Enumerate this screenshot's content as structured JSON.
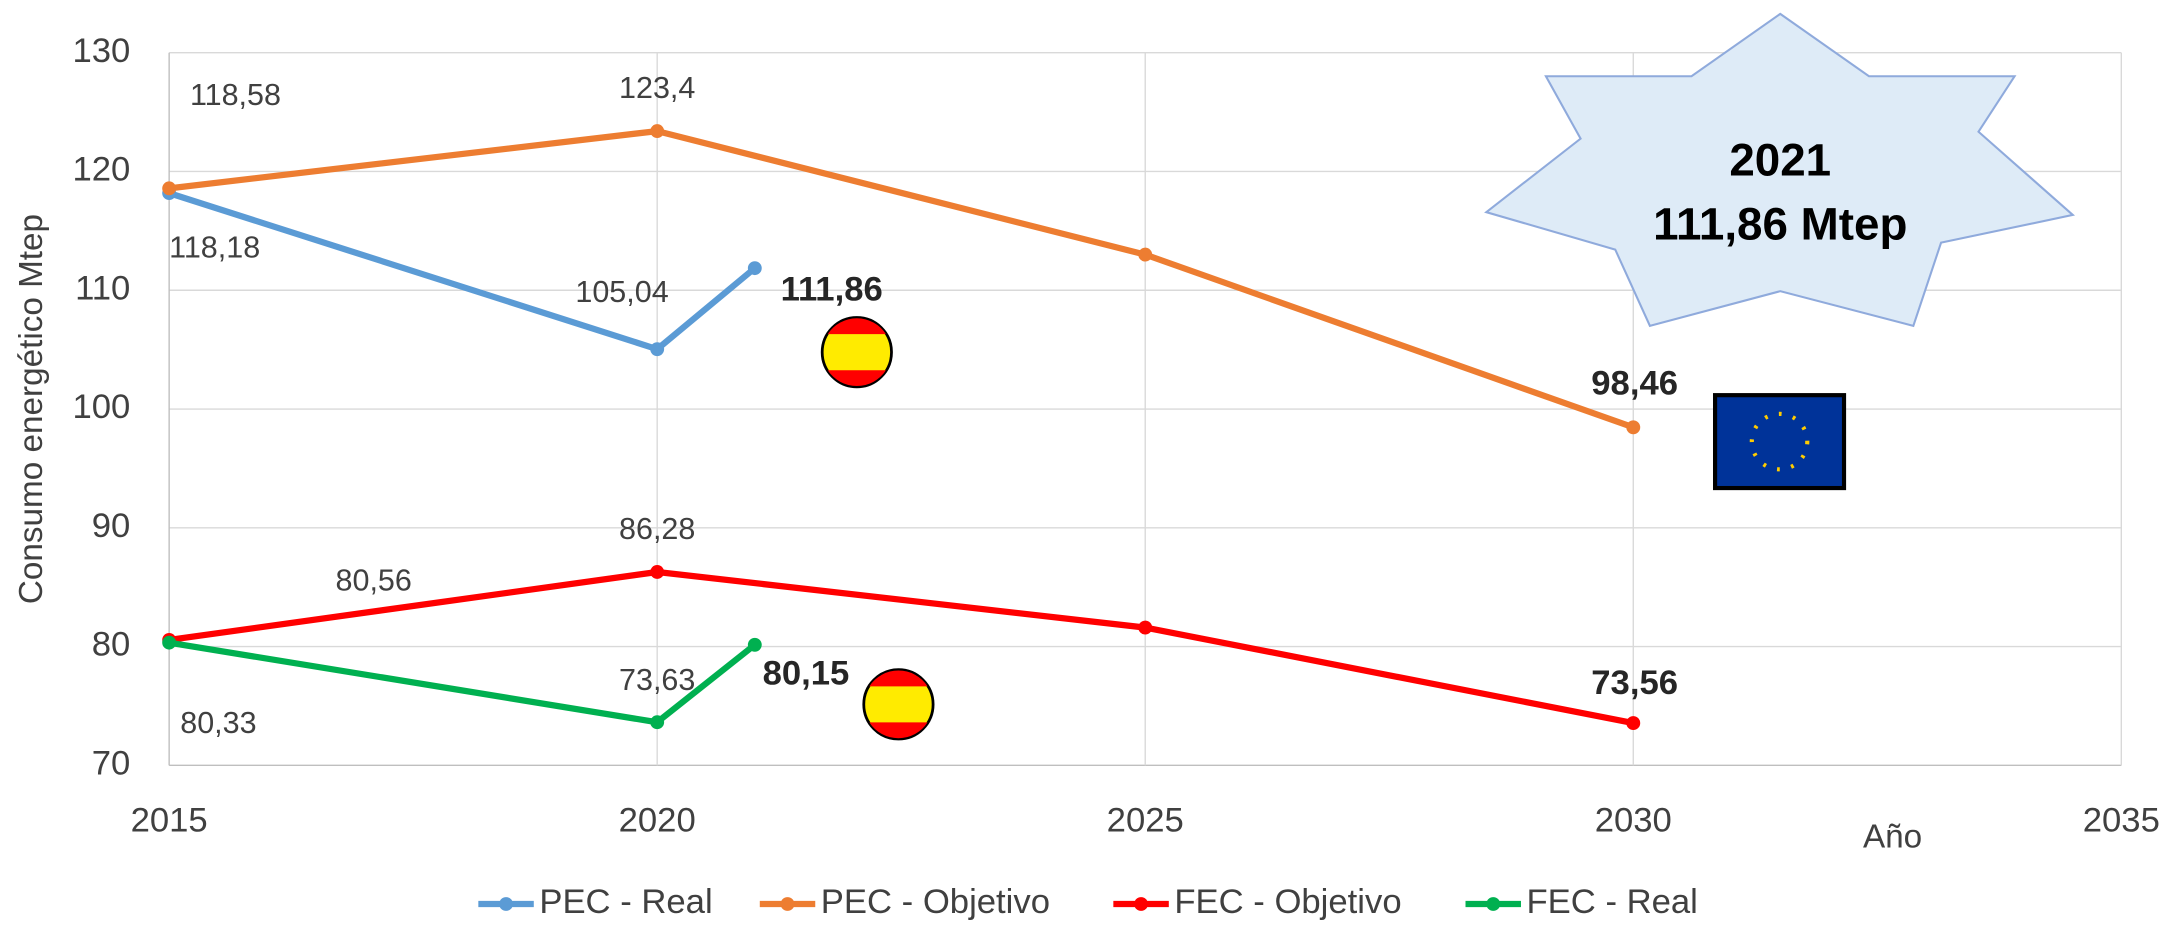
{
  "chart_data": {
    "type": "line",
    "y_label": "Consumo energético Mtep",
    "x_label": "Año",
    "annotation": [
      "2021",
      "111,86 Mtep"
    ],
    "xlim": [
      2015,
      2035
    ],
    "xticks": [
      2015,
      2020,
      2025,
      2030,
      2035
    ],
    "ylim": [
      70,
      130
    ],
    "yticks": [
      70,
      80,
      90,
      100,
      110,
      120,
      130
    ],
    "grid": true,
    "legend": "bottom",
    "series": [
      {
        "name": "PEC - Real",
        "color": "#5b9bd5",
        "x": [
          2015,
          2020,
          2021
        ],
        "values": [
          118.18,
          105.04,
          111.86
        ],
        "value_labels": [
          "118,18",
          "105,04",
          "111,86"
        ]
      },
      {
        "name": "PEC - Objetivo",
        "color": "#ed7d31",
        "x": [
          2015,
          2020,
          2025,
          2030
        ],
        "values": [
          118.58,
          123.4,
          113,
          98.46
        ],
        "value_labels": [
          "118,58",
          "123,4",
          null,
          "98,46"
        ]
      },
      {
        "name": "FEC - Objetivo",
        "color": "#ff0000",
        "x": [
          2015,
          2020,
          2025,
          2030
        ],
        "values": [
          80.56,
          86.28,
          81.6,
          73.56
        ],
        "value_labels": [
          "80,56",
          "86,28",
          null,
          "73,56"
        ]
      },
      {
        "name": "FEC - Real",
        "color": "#00b050",
        "x": [
          2015,
          2020,
          2021
        ],
        "values": [
          80.33,
          73.63,
          80.15
        ],
        "value_labels": [
          "80,33",
          "73,63",
          "80,15"
        ]
      }
    ]
  }
}
